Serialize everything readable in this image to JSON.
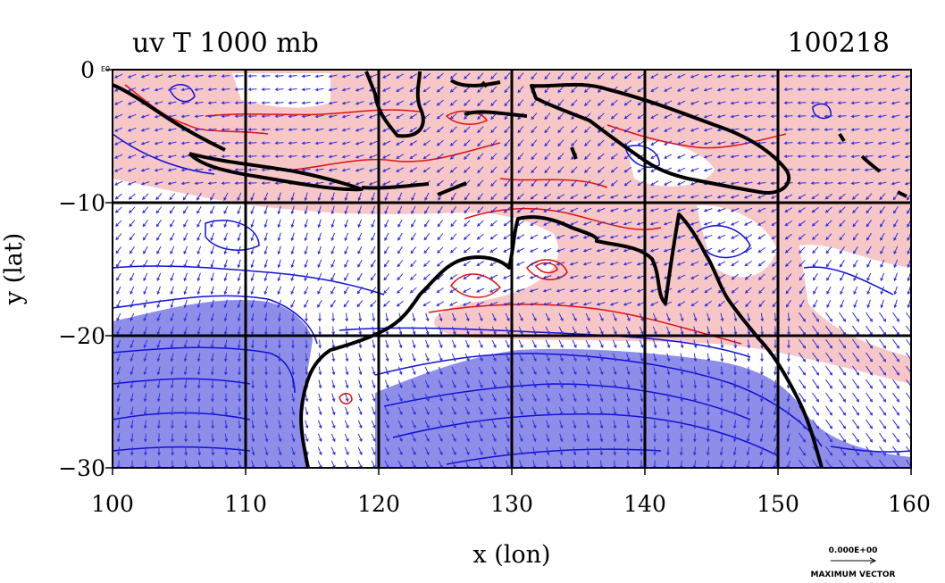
{
  "title_left": "uv T 1000 mb",
  "title_right": "100218",
  "xlabel": "x (lon)",
  "ylabel": "y (lat)",
  "corner_label": "E0",
  "x_ticks": [
    "100",
    "110",
    "120",
    "130",
    "140",
    "150",
    "160"
  ],
  "y_ticks": [
    "0",
    "−10",
    "−20",
    "−30"
  ],
  "legend": {
    "value": "0.000E+00",
    "caption": "MAXIMUM VECTOR"
  },
  "map": {
    "lon_range": [
      100,
      160
    ],
    "lat_range": [
      -30,
      0
    ],
    "grid_lon": [
      110,
      120,
      130,
      140,
      150
    ],
    "grid_lat": [
      -10,
      -20
    ],
    "colors": {
      "warm_fill": "#f7c6c6",
      "cold_fill": "#8e8ee8",
      "cold_fill_deep": "#7a7adf",
      "warm_line": "#e01010",
      "cold_line": "#1010d8",
      "vector": "#3030e0",
      "coast": "#000000"
    }
  }
}
